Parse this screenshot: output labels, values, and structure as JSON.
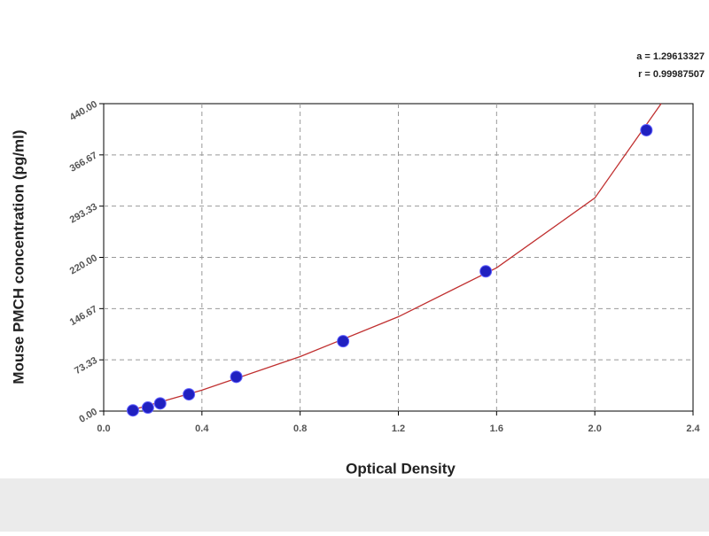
{
  "chart_data": {
    "type": "scatter",
    "x_label": "Optical Density",
    "y_label": "Mouse PMCH concentration (pg/ml)",
    "annotations": [
      "a = 1.29613327",
      "r = 0.99987507"
    ],
    "xlim": [
      0,
      2.4
    ],
    "xticks": [
      {
        "value": 0,
        "label": "0.0"
      },
      0.4,
      0.8,
      1.2,
      1.6,
      {
        "value": 2,
        "label": "2.0"
      },
      2.4
    ],
    "ylim": [
      0,
      440
    ],
    "yticks": [
      {
        "value": 0,
        "label": "0.00"
      },
      73.33,
      146.67,
      {
        "value": 220,
        "label": "220.00"
      },
      293.33,
      366.67,
      {
        "value": 440,
        "label": "440.00"
      }
    ],
    "grid": true,
    "series": [
      {
        "style": "markers",
        "color": "#2020c0",
        "x": [
          0.119,
          0.18,
          0.23,
          0.347,
          0.54,
          0.975,
          1.556,
          2.21
        ],
        "values": [
          1,
          5,
          11,
          24,
          49,
          100,
          200,
          402
        ]
      },
      {
        "style": "line",
        "color": "#c03030",
        "x": [
          0.1,
          0.4,
          0.8,
          1.2,
          1.6,
          2.0,
          2.27
        ],
        "values": [
          0,
          30,
          78,
          135,
          205,
          305,
          440
        ]
      }
    ]
  }
}
